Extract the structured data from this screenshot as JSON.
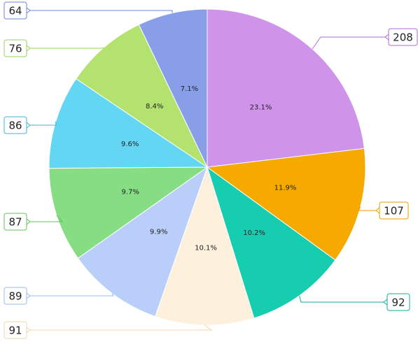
{
  "chart_data": {
    "type": "pie",
    "title": "",
    "slices": [
      {
        "value": 208,
        "percent_label": "23.1%",
        "color": "#cf93ea"
      },
      {
        "value": 107,
        "percent_label": "11.9%",
        "color": "#f6aa00"
      },
      {
        "value": 92,
        "percent_label": "10.2%",
        "color": "#16ceaf"
      },
      {
        "value": 91,
        "percent_label": "10.1%",
        "color": "#fdf1dd"
      },
      {
        "value": 89,
        "percent_label": "9.9%",
        "color": "#b9cff9"
      },
      {
        "value": 87,
        "percent_label": "9.7%",
        "color": "#87dd84"
      },
      {
        "value": 86,
        "percent_label": "9.6%",
        "color": "#63d6f4"
      },
      {
        "value": 76,
        "percent_label": "8.4%",
        "color": "#b3e26f"
      },
      {
        "value": 64,
        "percent_label": "7.1%",
        "color": "#889ee8"
      }
    ],
    "value_label_colors": [
      "#b069d8",
      "#e89a00",
      "#0fae95",
      "#efd7b2",
      "#9ab8ef",
      "#63bf60",
      "#3fb6d8",
      "#98d05a",
      "#6c84d8"
    ],
    "start_angle": "12 o'clock",
    "direction": "clockwise",
    "legend": "none"
  }
}
